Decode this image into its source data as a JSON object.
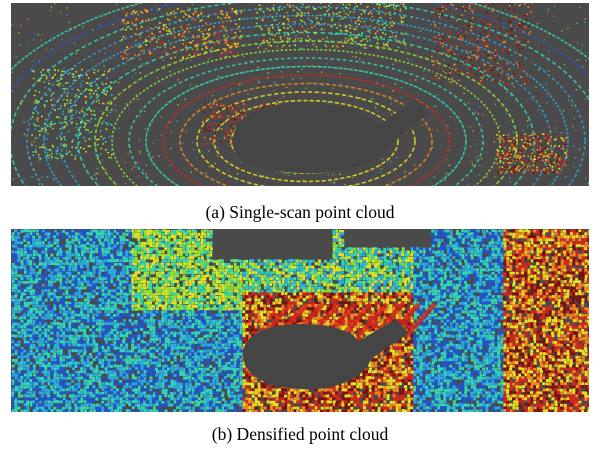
{
  "figure": {
    "panels": [
      {
        "caption": "(a) Single-scan point cloud"
      },
      {
        "caption": "(b) Densified point cloud"
      }
    ]
  },
  "colors": {
    "background": "#4a4a4a",
    "colormap": [
      "#1a1a8c",
      "#2255cc",
      "#2aa8e0",
      "#33d6b0",
      "#8fe03a",
      "#e6e022",
      "#f08a1c",
      "#d4261a",
      "#7a1010"
    ]
  }
}
